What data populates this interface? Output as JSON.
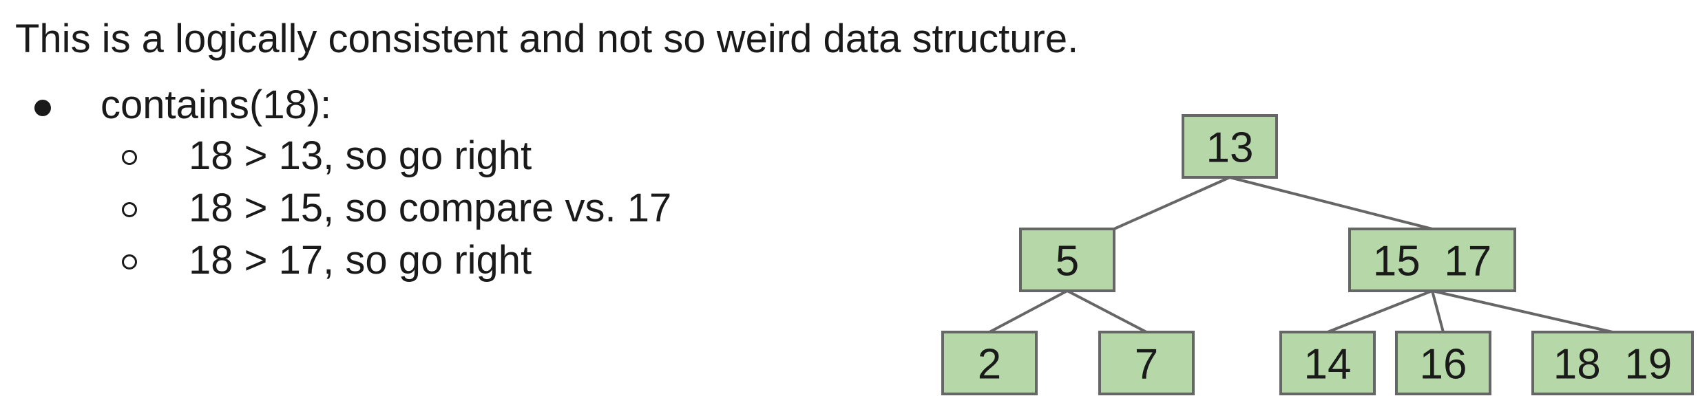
{
  "heading": "This is a logically consistent and not so weird data structure.",
  "bullets": [
    {
      "label": "contains(18):",
      "sub": [
        "18 > 13, so go right",
        "18 > 15, so compare vs. 17",
        "18 > 17, so go right"
      ]
    }
  ],
  "tree": {
    "nodes": [
      {
        "id": "n13",
        "keys": "13"
      },
      {
        "id": "n5",
        "keys": "5"
      },
      {
        "id": "n15_17",
        "keys": "15  17"
      },
      {
        "id": "n2",
        "keys": "2"
      },
      {
        "id": "n7",
        "keys": "7"
      },
      {
        "id": "n14",
        "keys": "14"
      },
      {
        "id": "n16",
        "keys": "16"
      },
      {
        "id": "n18_19",
        "keys": "18  19"
      }
    ],
    "edges": [
      [
        "n13",
        "n5"
      ],
      [
        "n13",
        "n15_17"
      ],
      [
        "n5",
        "n2"
      ],
      [
        "n5",
        "n7"
      ],
      [
        "n15_17",
        "n14"
      ],
      [
        "n15_17",
        "n16"
      ],
      [
        "n15_17",
        "n18_19"
      ]
    ],
    "node_fill": "#b6d7a8",
    "node_border": "#666666",
    "edge_color": "#666666"
  }
}
